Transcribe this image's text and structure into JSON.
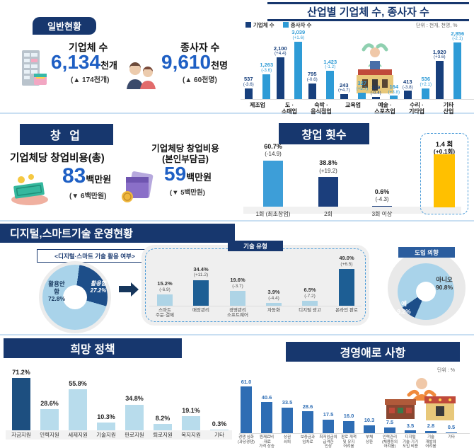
{
  "colors": {
    "navy": "#17376e",
    "value_blue": "#1e5fc4",
    "series_dark": "#173f7c",
    "series_light": "#2e9bd6",
    "startup_light": "#3d9ed8",
    "startup_dark": "#1b3e7c",
    "yellow": "#ffc000",
    "tech_pale": "#aed4e6",
    "tech_dark": "#1d5e94",
    "policy_dark": "#1d4f80",
    "policy_light": "#b8dcec",
    "difficulty_blue": "#2e6db4",
    "donut_dark": "#1d4e89",
    "donut_light": "#a9d3ea",
    "divider": "#c9dff2"
  },
  "general": {
    "badge": "일반현황",
    "stats": [
      {
        "icon": "building-icon",
        "label": "기업체 수",
        "value": "6,134",
        "unit": "천개",
        "change": "(▲ 174천개)"
      },
      {
        "icon": "people-icon",
        "label": "종사자 수",
        "value": "9,610",
        "unit": "천명",
        "change": "(▲ 60천명)"
      }
    ]
  },
  "startup": {
    "badge": "창 업",
    "items": [
      {
        "icon": "money-icon",
        "label": "기업체당 창업비용(총)",
        "value": "83",
        "unit": "백만원",
        "change": "(▼ 6백만원)"
      },
      {
        "icon": "wallet-icon",
        "label": "기업체당 창업비용\n(본인부담금)",
        "value": "59",
        "unit": "백만원",
        "change": "(▼ 5백만원)"
      }
    ]
  },
  "digital": {
    "title": "디지털,스마트기술 운영현황"
  },
  "chart_data": [
    {
      "id": "industry",
      "type": "bar",
      "title": "산업별 기업체 수, 종사자 수",
      "unit_note": "단위 : 천개, 천명, %",
      "legend": [
        "기업체 수",
        "종사자 수"
      ],
      "legend_position": "top-left",
      "categories": [
        "제조업",
        "도 ·\n소매업",
        "숙박 ·\n음식점업",
        "교육업",
        "예술 ·\n스포츠업",
        "수리 ·\n기타업",
        "기타\n산업"
      ],
      "series": [
        {
          "name": "기업체 수",
          "values": [
            537,
            2100,
            795,
            243,
            119,
            413,
            1920
          ],
          "changes": [
            "(-3.6)",
            "(+4.4)",
            "(-0.6)",
            "(+4.7)",
            "(-0.4)",
            "(-3.8)",
            "(+3.6)"
          ]
        },
        {
          "name": "종사자 수",
          "values": [
            1263,
            3039,
            1423,
            327,
            164,
            536,
            2856
          ],
          "changes": [
            "(-3.6)",
            "(+1.6)",
            "(-1.2)",
            "(+5.7)",
            "(+3.8)",
            "(+2.1)",
            "(-2.1)"
          ]
        }
      ],
      "ylim": [
        0,
        3200
      ],
      "grid": false
    },
    {
      "id": "startup-count",
      "type": "bar",
      "title": "창업 횟수",
      "categories": [
        "1회 (최초창업)",
        "2회",
        "3회 이상"
      ],
      "values": [
        60.7,
        38.8,
        0.6
      ],
      "changes": [
        "(-14.9)",
        "(+19.2)",
        "(-4.3)"
      ],
      "highlight": {
        "label": "1.4 회",
        "change": "(+0.1회)"
      },
      "ylim": [
        0,
        70
      ],
      "grid": false
    },
    {
      "id": "usage-donut",
      "type": "pie",
      "title": "<디지털·스마트 기술 활용 여부>",
      "slices": [
        {
          "label": "활용함",
          "value": 27.2
        },
        {
          "label": "활용안 함",
          "value": 72.8
        }
      ]
    },
    {
      "id": "tech-type",
      "type": "bar",
      "title": "기술 유형",
      "categories": [
        "스마트\n주문·결제",
        "매장관리",
        "경영관리\n소프트웨어",
        "자동화",
        "디지털 광고",
        "온라인 판로"
      ],
      "values": [
        15.2,
        34.4,
        19.6,
        3.9,
        6.5,
        49.0
      ],
      "changes": [
        "(-6.9)",
        "(+11.2)",
        "(-3.7)",
        "(-4.4)",
        "(-7.2)",
        "(+6.5)"
      ],
      "emphasis": [
        false,
        true,
        false,
        false,
        false,
        true
      ],
      "ylim": [
        0,
        55
      ],
      "grid": false
    },
    {
      "id": "intent-donut",
      "type": "pie",
      "title": "도입 의향",
      "slices": [
        {
          "label": "예",
          "value": 9.2
        },
        {
          "label": "아니오",
          "value": 90.8
        }
      ]
    },
    {
      "id": "policy",
      "type": "bar",
      "title": "희망 정책",
      "categories": [
        "자금지원",
        "인력지원",
        "세제지원",
        "기술지원",
        "판로지원",
        "퇴로지원",
        "복지지원",
        "기타"
      ],
      "values": [
        71.2,
        28.6,
        55.8,
        10.3,
        34.8,
        8.2,
        19.1,
        0.3
      ],
      "emphasis": [
        true,
        false,
        false,
        false,
        false,
        false,
        false,
        false
      ],
      "ylim": [
        0,
        80
      ],
      "grid": false
    },
    {
      "id": "difficulty",
      "type": "bar",
      "title": "경영애로 사항",
      "unit_note": "단위 : %",
      "categories": [
        "경쟁 심화\n(과당경쟁)",
        "원재료비\n·재료\n가격 상승",
        "상권\n쇠퇴",
        "보증금과\n임차료",
        "최저임금의\n급격한\n인상",
        "판로 개척\n및 유지\n어려움",
        "부채\n상환",
        "인력관리\n(채용등의\n어려움)",
        "디지털\n기술·기기\n도입 비용",
        "기술\n개발의\n어려움",
        "기타"
      ],
      "values": [
        61.0,
        40.6,
        33.5,
        28.6,
        17.5,
        16.0,
        10.3,
        7.5,
        3.5,
        2.8,
        0.5
      ],
      "ylim": [
        0,
        70
      ],
      "grid": false
    }
  ]
}
